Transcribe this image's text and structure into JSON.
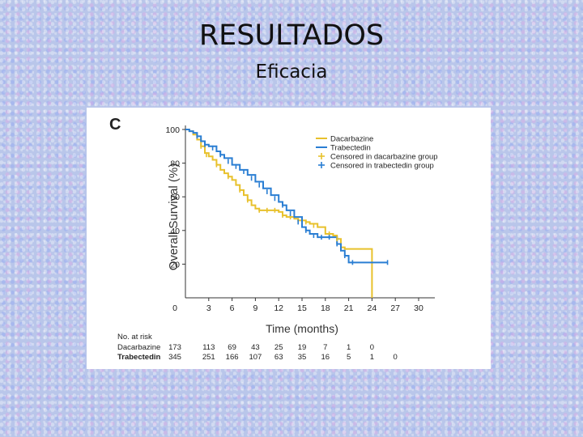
{
  "slide": {
    "title": "RESULTADOS",
    "subtitle": "Eficacia"
  },
  "chart_data": {
    "type": "line",
    "panel_label": "C",
    "title": "",
    "xlabel": "Time (months)",
    "ylabel": "Overall Survival (%)",
    "xlim": [
      0,
      30
    ],
    "ylim": [
      0,
      100
    ],
    "x_ticks": [
      0,
      3,
      6,
      9,
      12,
      15,
      18,
      21,
      24,
      27,
      30
    ],
    "y_ticks": [
      20,
      40,
      60,
      80,
      100
    ],
    "grid": false,
    "legend_position": "top-right",
    "legend": [
      {
        "label": "Dacarbazine",
        "kind": "line",
        "color": "#e8c12c"
      },
      {
        "label": "Trabectedin",
        "kind": "line",
        "color": "#2a7ed3"
      },
      {
        "label": "Censored in dacarbazine group",
        "kind": "marker",
        "color": "#e8c12c"
      },
      {
        "label": "Censored in trabectedin group",
        "kind": "marker",
        "color": "#2a7ed3"
      }
    ],
    "series": [
      {
        "name": "Dacarbazine",
        "color": "#e8c12c",
        "points": [
          [
            0,
            100
          ],
          [
            0.5,
            99
          ],
          [
            1,
            97
          ],
          [
            1.5,
            94
          ],
          [
            2,
            90
          ],
          [
            2.5,
            86
          ],
          [
            3,
            84
          ],
          [
            3.5,
            82
          ],
          [
            4,
            79
          ],
          [
            4.5,
            76
          ],
          [
            5,
            74
          ],
          [
            5.5,
            72
          ],
          [
            6,
            70
          ],
          [
            6.5,
            67
          ],
          [
            7,
            64
          ],
          [
            7.5,
            61
          ],
          [
            8,
            58
          ],
          [
            8.5,
            55
          ],
          [
            9,
            53
          ],
          [
            9.5,
            52
          ],
          [
            10,
            52
          ],
          [
            11,
            52
          ],
          [
            12,
            51
          ],
          [
            12.5,
            49
          ],
          [
            13,
            48
          ],
          [
            14,
            47
          ],
          [
            14.5,
            46
          ],
          [
            15,
            46
          ],
          [
            15.5,
            45
          ],
          [
            16,
            44
          ],
          [
            17,
            42
          ],
          [
            18,
            38
          ],
          [
            19,
            37
          ],
          [
            19.5,
            35
          ],
          [
            20,
            30
          ],
          [
            20.5,
            29
          ],
          [
            22,
            29
          ],
          [
            23,
            29
          ],
          [
            24,
            29
          ],
          [
            24,
            0
          ]
        ]
      },
      {
        "name": "Trabectedin",
        "color": "#2a7ed3",
        "points": [
          [
            0,
            100
          ],
          [
            0.5,
            99
          ],
          [
            1,
            98
          ],
          [
            1.5,
            96
          ],
          [
            2,
            93
          ],
          [
            2.5,
            91
          ],
          [
            3,
            90
          ],
          [
            4,
            87
          ],
          [
            4.5,
            85
          ],
          [
            5,
            83
          ],
          [
            6,
            79
          ],
          [
            7,
            76
          ],
          [
            8,
            73
          ],
          [
            9,
            69
          ],
          [
            10,
            65
          ],
          [
            11,
            61
          ],
          [
            12,
            57
          ],
          [
            12.5,
            55
          ],
          [
            13,
            52
          ],
          [
            14,
            48
          ],
          [
            15,
            42
          ],
          [
            15.5,
            40
          ],
          [
            16,
            38
          ],
          [
            17,
            36
          ],
          [
            18,
            36
          ],
          [
            18.5,
            36
          ],
          [
            19,
            36
          ],
          [
            19.5,
            32
          ],
          [
            20,
            28
          ],
          [
            20.5,
            25
          ],
          [
            21,
            21
          ],
          [
            22,
            21
          ],
          [
            24,
            21
          ],
          [
            25,
            21
          ],
          [
            26,
            21
          ]
        ]
      }
    ],
    "censored": [
      {
        "series": "Dacarbazine",
        "color": "#e8c12c",
        "points": [
          [
            2,
            90
          ],
          [
            2.7,
            85
          ],
          [
            4,
            79
          ],
          [
            5.5,
            72
          ],
          [
            7,
            64
          ],
          [
            8,
            58
          ],
          [
            9.5,
            52
          ],
          [
            10.5,
            52
          ],
          [
            11.5,
            52
          ],
          [
            12.5,
            49
          ],
          [
            13.5,
            48
          ],
          [
            14.5,
            46
          ],
          [
            15.5,
            45
          ],
          [
            16.5,
            43
          ],
          [
            18.5,
            38
          ],
          [
            19.5,
            35
          ]
        ]
      },
      {
        "series": "Trabectedin",
        "color": "#2a7ed3",
        "points": [
          [
            1.5,
            96
          ],
          [
            2.5,
            91
          ],
          [
            3.5,
            89
          ],
          [
            4.5,
            85
          ],
          [
            5.5,
            81
          ],
          [
            6.5,
            78
          ],
          [
            7.5,
            75
          ],
          [
            8.5,
            71
          ],
          [
            9.5,
            67
          ],
          [
            10.5,
            63
          ],
          [
            11.5,
            59
          ],
          [
            12.5,
            55
          ],
          [
            13.5,
            50
          ],
          [
            14.5,
            45
          ],
          [
            15.5,
            40
          ],
          [
            16.5,
            37
          ],
          [
            17.5,
            36
          ],
          [
            18.5,
            36
          ],
          [
            19.5,
            32
          ],
          [
            20.5,
            25
          ],
          [
            21.5,
            21
          ],
          [
            26,
            21
          ]
        ]
      }
    ],
    "risk_table": {
      "header": "No. at risk",
      "columns": [
        0,
        3,
        6,
        9,
        12,
        15,
        18,
        21,
        24,
        27
      ],
      "rows": [
        {
          "label": "Dacarbazine",
          "values": [
            "173",
            "113",
            "69",
            "43",
            "25",
            "19",
            "7",
            "1",
            "0"
          ]
        },
        {
          "label": "Trabectedin",
          "values": [
            "345",
            "251",
            "166",
            "107",
            "63",
            "35",
            "16",
            "5",
            "1",
            "0"
          ]
        }
      ]
    }
  }
}
